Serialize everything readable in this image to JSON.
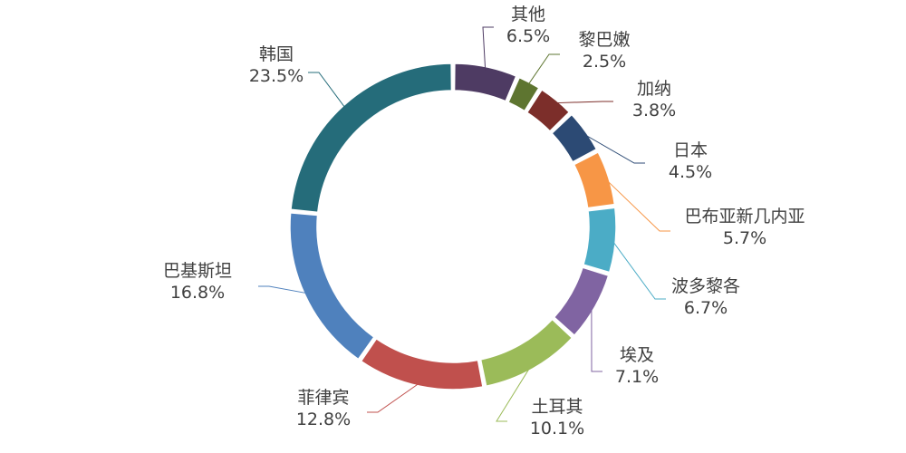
{
  "chart_data": {
    "type": "pie",
    "variant": "donut",
    "title": "",
    "slices": [
      {
        "label": "其他",
        "value": 6.5,
        "value_label": "6.5%",
        "color": "#4e3b63"
      },
      {
        "label": "黎巴嫩",
        "value": 2.5,
        "value_label": "2.5%",
        "color": "#5e7530"
      },
      {
        "label": "加纳",
        "value": 3.8,
        "value_label": "3.8%",
        "color": "#7c2e2a"
      },
      {
        "label": "日本",
        "value": 4.5,
        "value_label": "4.5%",
        "color": "#2c4a74"
      },
      {
        "label": "巴布亚新几内亚",
        "value": 5.7,
        "value_label": "5.7%",
        "color": "#f79646"
      },
      {
        "label": "波多黎各",
        "value": 6.7,
        "value_label": "6.7%",
        "color": "#4bacc6"
      },
      {
        "label": "埃及",
        "value": 7.1,
        "value_label": "7.1%",
        "color": "#8064a2"
      },
      {
        "label": "土耳其",
        "value": 10.1,
        "value_label": "10.1%",
        "color": "#9bbb59"
      },
      {
        "label": "菲律宾",
        "value": 12.8,
        "value_label": "12.8%",
        "color": "#c0504d"
      },
      {
        "label": "巴基斯坦",
        "value": 16.8,
        "value_label": "16.8%",
        "color": "#4f81bd"
      },
      {
        "label": "韩国",
        "value": 23.5,
        "value_label": "23.5%",
        "color": "#256c7a"
      }
    ]
  }
}
